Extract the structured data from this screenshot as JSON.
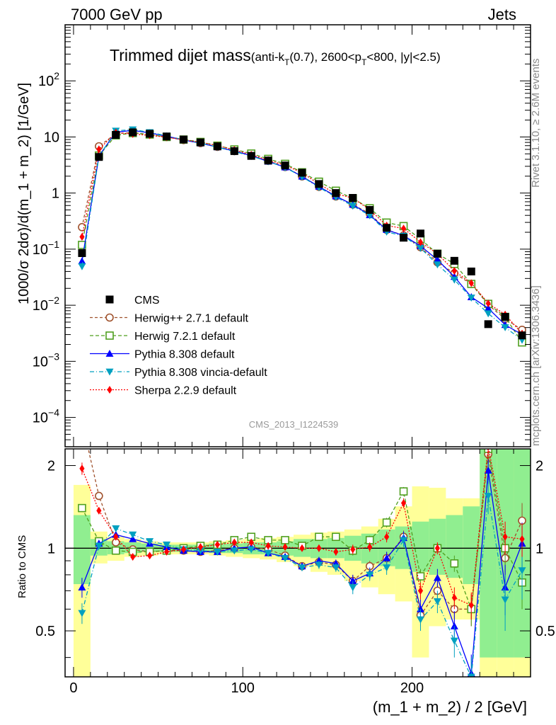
{
  "header": {
    "left": "7000 GeV pp",
    "right": "Jets"
  },
  "chart_data": {
    "type": "line",
    "title": "Trimmed dijet mass",
    "subtitle": {
      "prefix": "(anti-k",
      "t_sub": "T",
      "mid": "(0.7), 2600<p",
      "pt_sub": "T",
      "suffix": "<800, |y|<2.5)"
    },
    "xlabel": "(m_1 + m_2) / 2 [GeV]",
    "ylabel": "1000/σ 2dσ)/d(m_1 + m_2) [1/GeV]",
    "ratio_ylabel": "Ratio to CMS",
    "side_label_top": "Rivet 3.1.10, ≥ 2.6M events",
    "side_label_bottom": "mcplots.cern.ch [arXiv:1306.3436]",
    "watermark": "CMS_2013_I1224539",
    "xlim": [
      -5,
      270
    ],
    "ylim_log": [
      3e-05,
      1000
    ],
    "ratio_ylim": [
      0.34,
      2.3
    ],
    "x_ticks": [
      "0",
      "100",
      "200"
    ],
    "y_ticks": [
      "10^-4",
      "10^-3",
      "10^-2",
      "10^-1",
      "1",
      "10",
      "10^2"
    ],
    "ratio_ticks": [
      "0.5",
      "1",
      "2"
    ],
    "x": [
      5,
      15,
      25,
      35,
      45,
      55,
      65,
      75,
      85,
      95,
      105,
      115,
      125,
      135,
      145,
      155,
      165,
      175,
      185,
      195,
      205,
      215,
      225,
      235,
      245,
      255,
      265
    ],
    "cms": [
      0.085,
      4.4,
      10.9,
      12.1,
      11.4,
      10.2,
      9.0,
      8.0,
      6.8,
      5.6,
      4.6,
      3.8,
      3.1,
      2.3,
      1.45,
      1.0,
      0.82,
      0.5,
      0.24,
      0.16,
      0.19,
      0.083,
      0.062,
      0.04,
      0.0046,
      0.0062,
      0.0029
    ],
    "band_x": [
      [
        0,
        10
      ],
      [
        10,
        20
      ],
      [
        20,
        30
      ],
      [
        30,
        40
      ],
      [
        40,
        50
      ],
      [
        50,
        60
      ],
      [
        60,
        70
      ],
      [
        70,
        80
      ],
      [
        80,
        90
      ],
      [
        90,
        100
      ],
      [
        100,
        110
      ],
      [
        110,
        120
      ],
      [
        120,
        130
      ],
      [
        130,
        140
      ],
      [
        140,
        150
      ],
      [
        150,
        160
      ],
      [
        160,
        170
      ],
      [
        170,
        180
      ],
      [
        180,
        190
      ],
      [
        190,
        200
      ],
      [
        200,
        210
      ],
      [
        210,
        220
      ],
      [
        220,
        230
      ],
      [
        230,
        240
      ],
      [
        240,
        250
      ],
      [
        250,
        260
      ],
      [
        260,
        270
      ]
    ],
    "band_stat": [
      [
        0.74,
        1.32
      ],
      [
        0.94,
        1.08
      ],
      [
        0.95,
        1.06
      ],
      [
        0.96,
        1.05
      ],
      [
        0.97,
        1.04
      ],
      [
        0.97,
        1.03
      ],
      [
        0.97,
        1.03
      ],
      [
        0.97,
        1.03
      ],
      [
        0.96,
        1.04
      ],
      [
        0.96,
        1.04
      ],
      [
        0.95,
        1.05
      ],
      [
        0.95,
        1.05
      ],
      [
        0.94,
        1.06
      ],
      [
        0.93,
        1.08
      ],
      [
        0.92,
        1.08
      ],
      [
        0.92,
        1.09
      ],
      [
        0.9,
        1.11
      ],
      [
        0.88,
        1.13
      ],
      [
        0.86,
        1.17
      ],
      [
        0.84,
        1.2
      ],
      [
        0.82,
        1.25
      ],
      [
        0.8,
        1.28
      ],
      [
        0.78,
        1.32
      ],
      [
        0.74,
        1.42
      ],
      [
        0.4,
        2.4
      ],
      [
        0.4,
        2.4
      ],
      [
        0.4,
        2.4
      ]
    ],
    "band_tot": [
      [
        0.3,
        1.7
      ],
      [
        0.88,
        1.15
      ],
      [
        0.9,
        1.1
      ],
      [
        0.93,
        1.08
      ],
      [
        0.94,
        1.06
      ],
      [
        0.95,
        1.05
      ],
      [
        0.95,
        1.05
      ],
      [
        0.95,
        1.05
      ],
      [
        0.94,
        1.06
      ],
      [
        0.93,
        1.07
      ],
      [
        0.92,
        1.08
      ],
      [
        0.91,
        1.09
      ],
      [
        0.89,
        1.1
      ],
      [
        0.86,
        1.12
      ],
      [
        0.82,
        1.14
      ],
      [
        0.8,
        1.15
      ],
      [
        0.76,
        1.17
      ],
      [
        0.72,
        1.2
      ],
      [
        0.68,
        1.28
      ],
      [
        0.64,
        1.42
      ],
      [
        0.4,
        1.68
      ],
      [
        0.52,
        1.66
      ],
      [
        0.55,
        1.52
      ],
      [
        0.55,
        1.52
      ],
      [
        0.3,
        2.4
      ],
      [
        0.3,
        2.4
      ],
      [
        0.3,
        2.4
      ]
    ],
    "series": [
      {
        "name": "CMS",
        "color": "#000000",
        "marker": "square-filled",
        "dash": "",
        "ratio": []
      },
      {
        "name": "Herwig++ 2.7.1 default",
        "color": "#a0522d",
        "marker": "circle-open",
        "dash": "4,3",
        "ratio": [
          2.9,
          1.55,
          1.05,
          0.99,
          0.97,
          0.98,
          0.98,
          0.97,
          0.98,
          1.0,
          1.01,
          0.99,
          0.94,
          0.86,
          0.89,
          0.87,
          0.76,
          0.86,
          0.92,
          1.1,
          0.57,
          0.7,
          0.6,
          0.6,
          2.2,
          0.92,
          1.26
        ],
        "err": [
          0.15,
          0.05,
          0.02,
          0.02,
          0.02,
          0.02,
          0.02,
          0.02,
          0.02,
          0.02,
          0.02,
          0.02,
          0.02,
          0.02,
          0.03,
          0.03,
          0.04,
          0.04,
          0.05,
          0.06,
          0.05,
          0.06,
          0.07,
          0.08,
          0.3,
          0.2,
          0.2
        ]
      },
      {
        "name": "Herwig 7.2.1 default",
        "color": "#4f9f1f",
        "marker": "square-open",
        "dash": "5,3",
        "ratio": [
          1.4,
          1.06,
          0.98,
          0.97,
          0.97,
          0.98,
          1.0,
          1.02,
          1.03,
          1.07,
          1.1,
          1.07,
          1.07,
          1.02,
          1.1,
          1.1,
          0.98,
          1.07,
          1.24,
          1.61,
          0.79,
          1.0,
          0.88,
          0.6,
          2.3,
          1.0,
          0.75
        ],
        "err": [
          0.04,
          0.03,
          0.02,
          0.02,
          0.02,
          0.02,
          0.02,
          0.02,
          0.02,
          0.02,
          0.02,
          0.02,
          0.02,
          0.02,
          0.03,
          0.03,
          0.04,
          0.04,
          0.05,
          0.06,
          0.05,
          0.04,
          0.06,
          0.08,
          0.25,
          0.18,
          0.15
        ]
      },
      {
        "name": "Pythia 8.308 default",
        "color": "#0000ff",
        "marker": "triangle-up",
        "dash": "",
        "ratio": [
          0.72,
          1.04,
          1.12,
          1.08,
          1.04,
          1.01,
          0.98,
          0.97,
          0.97,
          1.0,
          1.01,
          0.96,
          0.93,
          0.86,
          0.9,
          0.88,
          0.76,
          0.81,
          0.92,
          1.09,
          0.6,
          0.78,
          0.52,
          0.35,
          1.92,
          0.72,
          1.04
        ],
        "err": [
          0.06,
          0.03,
          0.02,
          0.02,
          0.02,
          0.02,
          0.02,
          0.02,
          0.02,
          0.02,
          0.02,
          0.02,
          0.02,
          0.02,
          0.03,
          0.03,
          0.04,
          0.04,
          0.05,
          0.06,
          0.05,
          0.06,
          0.07,
          0.06,
          0.2,
          0.15,
          0.2
        ]
      },
      {
        "name": "Pythia 8.308 vincia-default",
        "color": "#00a0c0",
        "marker": "triangle-down",
        "dash": "6,3,1,3",
        "ratio": [
          0.58,
          1.02,
          1.18,
          1.12,
          1.06,
          1.03,
          0.99,
          0.98,
          0.97,
          0.98,
          0.99,
          0.96,
          0.92,
          0.85,
          0.87,
          0.85,
          0.72,
          0.8,
          0.85,
          1.07,
          0.55,
          0.64,
          0.46,
          0.34,
          1.55,
          0.65,
          0.83
        ],
        "err": [
          0.05,
          0.03,
          0.02,
          0.02,
          0.02,
          0.02,
          0.02,
          0.02,
          0.02,
          0.02,
          0.02,
          0.02,
          0.02,
          0.02,
          0.03,
          0.03,
          0.04,
          0.04,
          0.05,
          0.06,
          0.05,
          0.06,
          0.06,
          0.06,
          0.22,
          0.15,
          0.18
        ]
      },
      {
        "name": "Sherpa 2.2.9 default",
        "color": "#ff0000",
        "marker": "diamond",
        "dash": "2,2",
        "ratio": [
          1.95,
          1.37,
          1.1,
          0.93,
          0.94,
          0.97,
          0.99,
          1.01,
          1.03,
          1.05,
          1.05,
          1.02,
          1.01,
          1.0,
          1.0,
          0.97,
          0.99,
          1.01,
          1.1,
          1.46,
          0.7,
          1.0,
          0.66,
          0.62,
          2.35,
          1.1,
          1.08
        ],
        "err": [
          0.1,
          0.04,
          0.02,
          0.02,
          0.02,
          0.02,
          0.02,
          0.02,
          0.02,
          0.02,
          0.02,
          0.02,
          0.02,
          0.02,
          0.03,
          0.03,
          0.04,
          0.04,
          0.05,
          0.06,
          0.05,
          0.05,
          0.06,
          0.07,
          0.25,
          0.15,
          0.15
        ]
      }
    ]
  }
}
